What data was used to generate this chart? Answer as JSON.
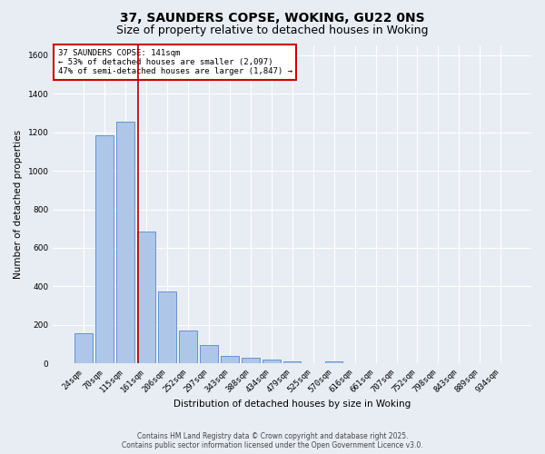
{
  "title": "37, SAUNDERS COPSE, WOKING, GU22 0NS",
  "subtitle": "Size of property relative to detached houses in Woking",
  "xlabel": "Distribution of detached houses by size in Woking",
  "ylabel": "Number of detached properties",
  "categories": [
    "24sqm",
    "70sqm",
    "115sqm",
    "161sqm",
    "206sqm",
    "252sqm",
    "297sqm",
    "343sqm",
    "388sqm",
    "434sqm",
    "479sqm",
    "525sqm",
    "570sqm",
    "616sqm",
    "661sqm",
    "707sqm",
    "752sqm",
    "798sqm",
    "843sqm",
    "889sqm",
    "934sqm"
  ],
  "values": [
    155,
    1185,
    1255,
    685,
    375,
    170,
    95,
    38,
    32,
    20,
    13,
    0,
    10,
    0,
    0,
    0,
    0,
    0,
    0,
    0,
    0
  ],
  "bar_color": "#aec6e8",
  "bar_edge_color": "#5588cc",
  "background_color": "#e8edf4",
  "grid_color": "#ffffff",
  "vline_color": "#aa0000",
  "ylim": [
    0,
    1650
  ],
  "yticks": [
    0,
    200,
    400,
    600,
    800,
    1000,
    1200,
    1400,
    1600
  ],
  "annotation_text": "37 SAUNDERS COPSE: 141sqm\n← 53% of detached houses are smaller (2,097)\n47% of semi-detached houses are larger (1,847) →",
  "annotation_box_color": "#ffffff",
  "annotation_box_edge_color": "#cc0000",
  "footer_line1": "Contains HM Land Registry data © Crown copyright and database right 2025.",
  "footer_line2": "Contains public sector information licensed under the Open Government Licence v3.0.",
  "title_fontsize": 10,
  "subtitle_fontsize": 9,
  "axis_label_fontsize": 7.5,
  "tick_fontsize": 6.5,
  "annotation_fontsize": 6.5,
  "footer_fontsize": 5.5,
  "vline_position": 2.6
}
